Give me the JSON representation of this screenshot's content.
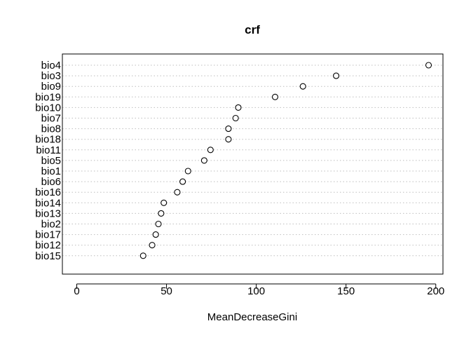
{
  "chart_data": {
    "type": "scatter",
    "title": "crf",
    "xlabel": "MeanDecreaseGini",
    "ylabel": "",
    "xlim": [
      -8,
      204
    ],
    "xticks": [
      "0",
      "50",
      "100",
      "150",
      "200"
    ],
    "categories": [
      "bio4",
      "bio3",
      "bio9",
      "bio19",
      "bio10",
      "bio7",
      "bio8",
      "bio18",
      "bio11",
      "bio5",
      "bio1",
      "bio6",
      "bio16",
      "bio14",
      "bio13",
      "bio2",
      "bio17",
      "bio12",
      "bio15"
    ],
    "values": [
      196,
      144.5,
      126,
      110.5,
      90,
      88.5,
      84.5,
      84.5,
      74.5,
      71,
      62,
      59,
      56,
      48.5,
      47,
      45.5,
      44,
      42,
      37
    ],
    "grid": "horizontal-dotted",
    "legend": "none",
    "colors": {
      "axis": "#000000",
      "grid": "#bebebe",
      "point": "#000000",
      "background": "#ffffff"
    }
  }
}
